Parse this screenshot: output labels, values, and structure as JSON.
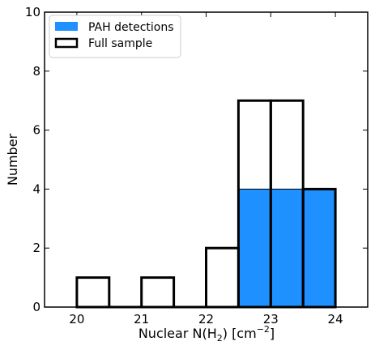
{
  "chart_data": {
    "type": "bar",
    "subtype": "histogram",
    "title": "",
    "xlabel": "Nuclear N(H",
    "xlabel_sub": "2",
    "xlabel_unit": ") [cm",
    "xlabel_sup": "−2",
    "xlabel_end": "]",
    "ylabel": "Number",
    "xlim": [
      19.5,
      24.5
    ],
    "ylim": [
      0,
      10
    ],
    "xticks": [
      "20",
      "21",
      "22",
      "23",
      "24"
    ],
    "xtick_values": [
      20,
      21,
      22,
      23,
      24
    ],
    "yticks": [
      "0",
      "2",
      "4",
      "6",
      "8",
      "10"
    ],
    "ytick_values": [
      0,
      2,
      4,
      6,
      8,
      10
    ],
    "grid": false,
    "legend_position": "top-left",
    "series": [
      {
        "name": "PAH detections",
        "style": "filled",
        "color": "#1e90ff",
        "bins": [
          {
            "x0": 22.5,
            "x1": 23.0,
            "count": 4
          },
          {
            "x0": 23.0,
            "x1": 23.5,
            "count": 4
          },
          {
            "x0": 23.5,
            "x1": 24.0,
            "count": 4
          }
        ]
      },
      {
        "name": "Full sample",
        "style": "step-outline",
        "color": "#000000",
        "bins": [
          {
            "x0": 20.0,
            "x1": 20.5,
            "count": 1
          },
          {
            "x0": 20.5,
            "x1": 21.0,
            "count": 0
          },
          {
            "x0": 21.0,
            "x1": 21.5,
            "count": 1
          },
          {
            "x0": 21.5,
            "x1": 22.0,
            "count": 0
          },
          {
            "x0": 22.0,
            "x1": 22.5,
            "count": 2
          },
          {
            "x0": 22.5,
            "x1": 23.0,
            "count": 7
          },
          {
            "x0": 23.0,
            "x1": 23.5,
            "count": 7
          },
          {
            "x0": 23.5,
            "x1": 24.0,
            "count": 4
          }
        ]
      }
    ]
  }
}
